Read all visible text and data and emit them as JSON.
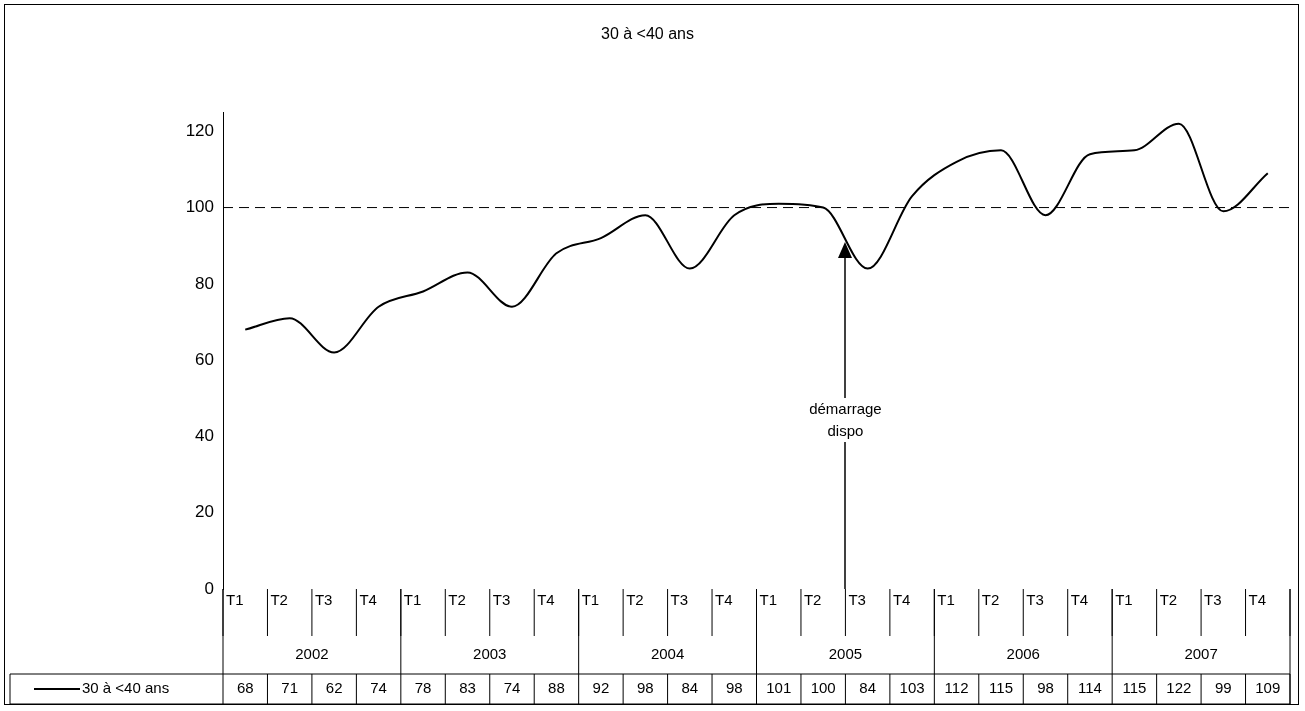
{
  "chart_data": {
    "type": "line",
    "title": "30 à <40 ans",
    "categories": [
      "T1",
      "T2",
      "T3",
      "T4",
      "T1",
      "T2",
      "T3",
      "T4",
      "T1",
      "T2",
      "T3",
      "T4",
      "T1",
      "T2",
      "T3",
      "T4",
      "T1",
      "T2",
      "T3",
      "T4",
      "T1",
      "T2",
      "T3",
      "T4"
    ],
    "series": [
      {
        "name": "30 à <40 ans",
        "color": "#000000",
        "values": [
          68,
          71,
          62,
          74,
          78,
          83,
          74,
          88,
          92,
          98,
          84,
          98,
          101,
          100,
          84,
          103,
          112,
          115,
          98,
          114,
          115,
          122,
          99,
          109
        ]
      }
    ],
    "ylim": [
      0,
      125
    ],
    "yticks": [
      0,
      20,
      40,
      60,
      80,
      100,
      120
    ],
    "grid": false,
    "legend": "bottom",
    "marker": "none",
    "line_style": "solid",
    "data_labels": true,
    "ref_lines": [
      {
        "axis": "y",
        "value": 100,
        "line_style": "dashed",
        "color": "#000000"
      }
    ],
    "annotations": [
      "2002",
      "2003",
      "2004",
      "2005",
      "2006",
      "2007",
      "démarrage dispo"
    ]
  }
}
